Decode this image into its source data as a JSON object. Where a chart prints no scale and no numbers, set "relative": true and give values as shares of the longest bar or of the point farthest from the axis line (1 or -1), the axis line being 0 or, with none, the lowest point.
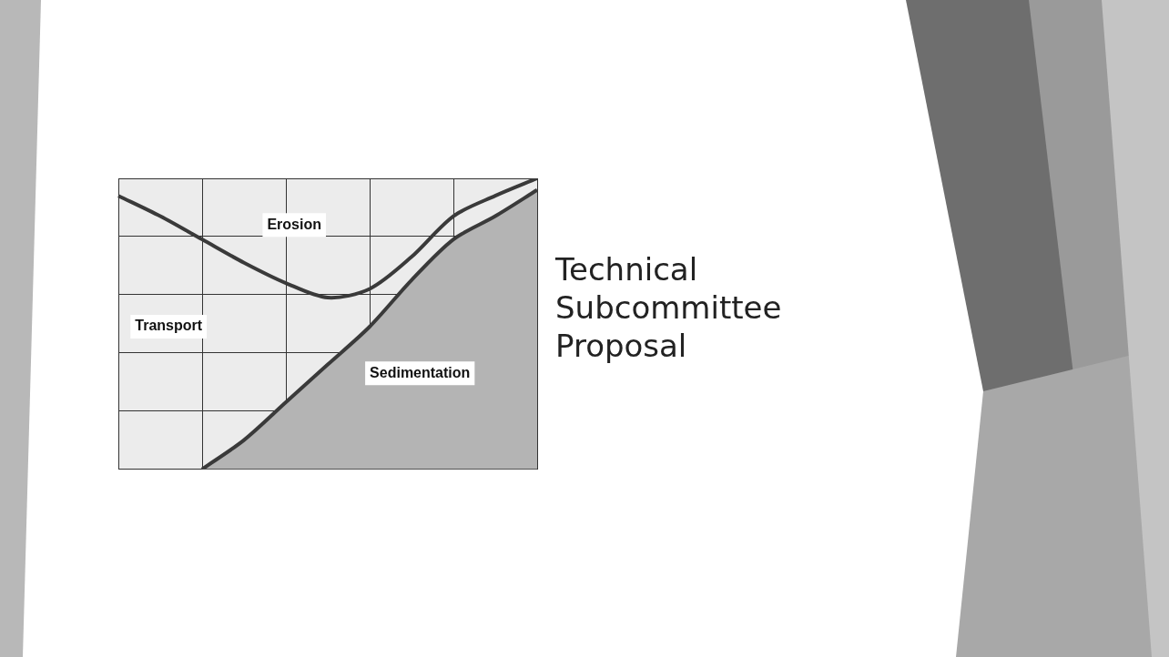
{
  "chart_data": {
    "type": "line",
    "title": "Technical Subcommittee Proposal",
    "relative": true,
    "categories": [
      null,
      null,
      null,
      null,
      null,
      null,
      null,
      null,
      null,
      null,
      null
    ],
    "series": [
      {
        "color": "#3a3a3a",
        "values": [
          0.94,
          0.87,
          0.79,
          0.71,
          0.64,
          0.59,
          0.62,
          0.73,
          0.87,
          0.94,
          1
        ]
      },
      {
        "type": "area",
        "color": "#3a3a3a",
        "values": [
          null,
          null,
          0,
          0.1,
          0.23,
          0.36,
          0.49,
          0.65,
          0.79,
          0.87,
          0.96
        ]
      }
    ],
    "annotations": [
      "Erosion",
      "Transport",
      "Sedimentation"
    ],
    "grid": true,
    "legend": false
  }
}
